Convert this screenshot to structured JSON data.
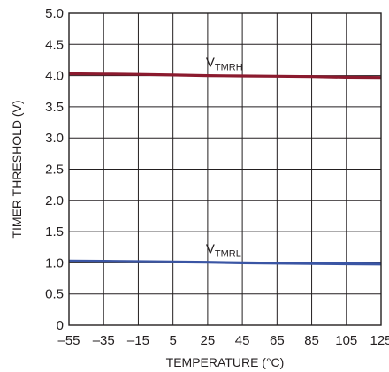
{
  "chart_data": {
    "type": "line",
    "title": "",
    "xlabel": "TEMPERATURE (°C)",
    "ylabel": "TIMER THRESHOLD (V)",
    "xlim": [
      -55,
      125
    ],
    "ylim": [
      0,
      5.0
    ],
    "x_ticks": [
      -55,
      -35,
      -15,
      5,
      25,
      45,
      65,
      85,
      105,
      125
    ],
    "x_tick_labels": [
      "–55",
      "–35",
      "–15",
      "5",
      "25",
      "45",
      "65",
      "85",
      "105",
      "125"
    ],
    "y_ticks": [
      0,
      0.5,
      1.0,
      1.5,
      2.0,
      2.5,
      3.0,
      3.5,
      4.0,
      4.5,
      5.0
    ],
    "y_tick_labels": [
      "0",
      "0.5",
      "1.0",
      "1.5",
      "2.0",
      "2.5",
      "3.0",
      "3.5",
      "4.0",
      "4.5",
      "5.0"
    ],
    "grid": true,
    "series": [
      {
        "name_main": "V",
        "name_sub": "TMRH",
        "color": "#8b1a2e",
        "x": [
          -55,
          -35,
          -15,
          5,
          25,
          45,
          65,
          85,
          105,
          125
        ],
        "y": [
          4.03,
          4.025,
          4.02,
          4.01,
          4.0,
          3.995,
          3.99,
          3.985,
          3.975,
          3.97
        ]
      },
      {
        "name_main": "V",
        "name_sub": "TMRL",
        "color": "#3a55a4",
        "x": [
          -55,
          -35,
          -15,
          5,
          25,
          45,
          65,
          85,
          105,
          125
        ],
        "y": [
          1.03,
          1.025,
          1.02,
          1.015,
          1.01,
          1.0,
          0.995,
          0.99,
          0.985,
          0.98
        ]
      }
    ]
  }
}
